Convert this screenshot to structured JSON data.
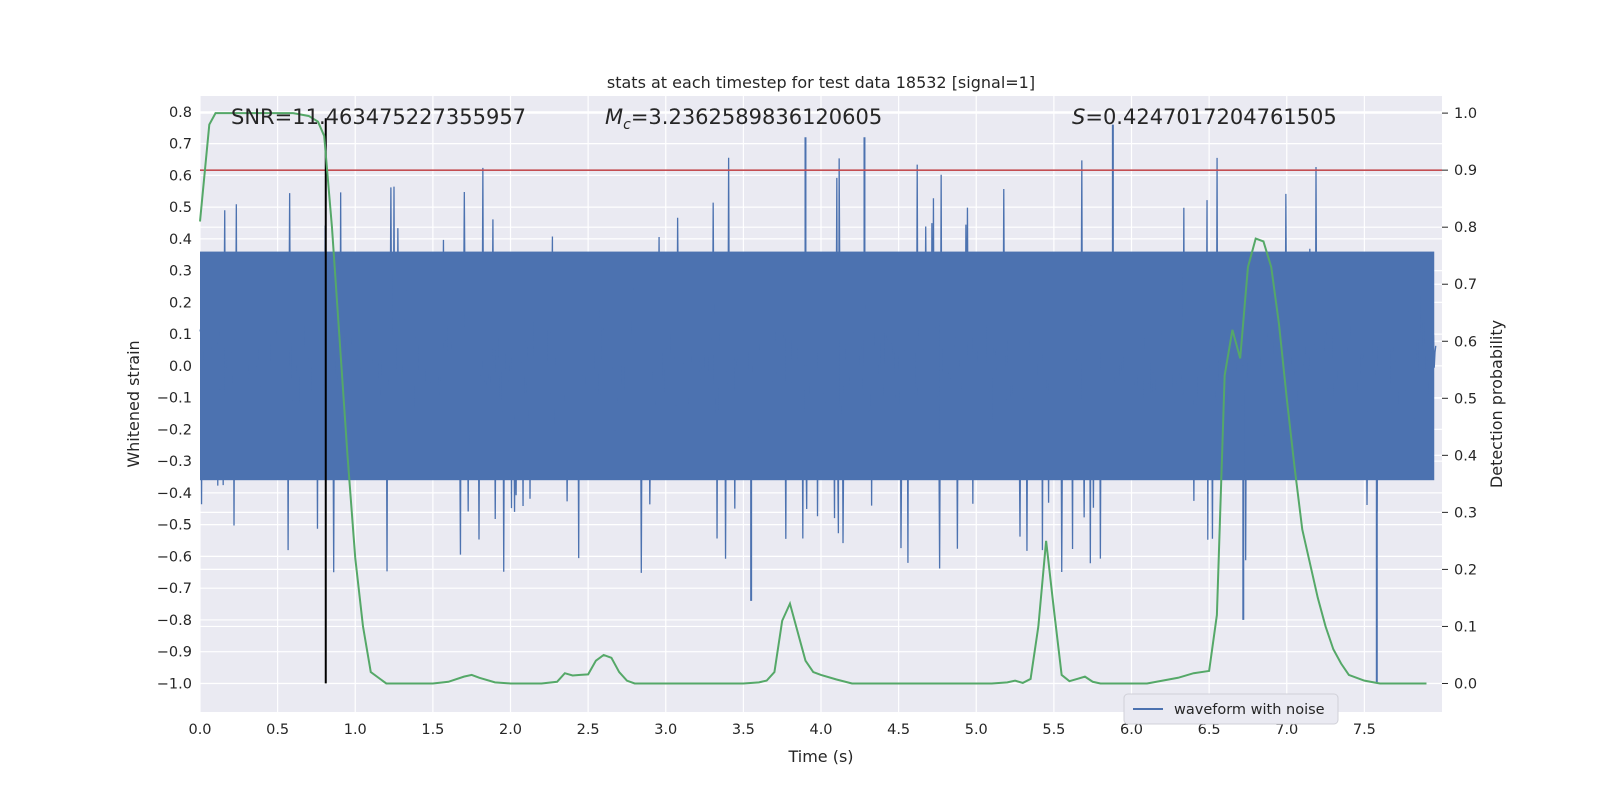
{
  "chart_data": {
    "type": "line",
    "title": "stats at each timestep for test data 18532 [signal=1]",
    "xlabel": "Time (s)",
    "ylabel_left": "Whitened strain",
    "ylabel_right": "Detection probability",
    "xlim": [
      0.0,
      8.0
    ],
    "ylim_left": [
      -1.09,
      0.85
    ],
    "ylim_right": [
      -0.05,
      1.03
    ],
    "xticks": [
      0.0,
      0.5,
      1.0,
      1.5,
      2.0,
      2.5,
      3.0,
      3.5,
      4.0,
      4.5,
      5.0,
      5.5,
      6.0,
      6.5,
      7.0,
      7.5
    ],
    "xtick_labels": [
      "0.0",
      "0.5",
      "1.0",
      "1.5",
      "2.0",
      "2.5",
      "3.0",
      "3.5",
      "4.0",
      "4.5",
      "5.0",
      "5.5",
      "6.0",
      "6.5",
      "7.0",
      "7.5"
    ],
    "yticks_left": [
      0.8,
      0.7,
      0.6,
      0.5,
      0.4,
      0.3,
      0.2,
      0.1,
      0.0,
      -0.1,
      -0.2,
      -0.3,
      -0.4,
      -0.5,
      -0.6,
      -0.7,
      -0.8,
      -0.9,
      -1.0
    ],
    "ytick_labels_left": [
      "0.8",
      "0.7",
      "0.6",
      "0.5",
      "0.4",
      "0.3",
      "0.2",
      "0.1",
      "0.0",
      "-0.1",
      "-0.2",
      "-0.3",
      "-0.4",
      "-0.5",
      "-0.6",
      "-0.7",
      "-0.8",
      "-0.9",
      "-1.0"
    ],
    "yticks_right": [
      1.0,
      0.9,
      0.8,
      0.7,
      0.6,
      0.5,
      0.4,
      0.3,
      0.2,
      0.1,
      0.0
    ],
    "ytick_labels_right": [
      "1.0",
      "0.9",
      "0.8",
      "0.7",
      "0.6",
      "0.5",
      "0.4",
      "0.3",
      "0.2",
      "0.1",
      "0.0"
    ],
    "annotations": {
      "snr": "SNR=11.463475227355957",
      "mc_symbol": "M",
      "mc_subscript": "c",
      "mc_value": "=3.2362589836120605",
      "s_symbol": "S",
      "s_value": "=0.4247017204761505"
    },
    "threshold_right_axis": 0.9,
    "vertical_marker_time": 0.81,
    "vertical_marker_ylim": [
      -1.0,
      0.78
    ],
    "waveform": {
      "name": "waveform with noise",
      "color": "#4c72b0",
      "n_samples": 1600,
      "seed": 18532,
      "envelope": [
        -0.36,
        0.36
      ],
      "min_spike": -1.0,
      "max_spike": 0.76
    },
    "probability": {
      "color": "#55a868",
      "t": [
        0.0,
        0.06,
        0.1,
        0.2,
        0.3,
        0.4,
        0.5,
        0.6,
        0.7,
        0.76,
        0.8,
        0.85,
        0.9,
        0.95,
        1.0,
        1.05,
        1.1,
        1.2,
        1.3,
        1.4,
        1.5,
        1.6,
        1.7,
        1.75,
        1.8,
        1.9,
        2.0,
        2.1,
        2.2,
        2.3,
        2.35,
        2.4,
        2.45,
        2.5,
        2.55,
        2.6,
        2.65,
        2.7,
        2.75,
        2.8,
        2.9,
        3.0,
        3.1,
        3.2,
        3.3,
        3.4,
        3.5,
        3.6,
        3.65,
        3.7,
        3.75,
        3.8,
        3.85,
        3.9,
        3.95,
        4.0,
        4.1,
        4.2,
        4.3,
        4.4,
        4.5,
        4.6,
        4.7,
        4.8,
        4.9,
        5.0,
        5.1,
        5.2,
        5.25,
        5.3,
        5.35,
        5.4,
        5.45,
        5.5,
        5.55,
        5.6,
        5.65,
        5.7,
        5.75,
        5.8,
        5.9,
        6.0,
        6.1,
        6.2,
        6.3,
        6.4,
        6.5,
        6.55,
        6.6,
        6.65,
        6.7,
        6.75,
        6.8,
        6.85,
        6.9,
        6.95,
        7.0,
        7.05,
        7.1,
        7.15,
        7.2,
        7.25,
        7.3,
        7.35,
        7.4,
        7.5,
        7.6,
        7.7,
        7.8,
        7.9
      ],
      "p": [
        0.81,
        0.98,
        1.0,
        1.0,
        1.0,
        1.0,
        1.0,
        1.0,
        0.995,
        0.985,
        0.96,
        0.8,
        0.6,
        0.4,
        0.22,
        0.1,
        0.02,
        0.0,
        0.0,
        0.0,
        0.0,
        0.003,
        0.012,
        0.015,
        0.01,
        0.002,
        0.0,
        0.0,
        0.0,
        0.003,
        0.018,
        0.014,
        0.015,
        0.016,
        0.04,
        0.05,
        0.045,
        0.02,
        0.005,
        0.0,
        0.0,
        0.0,
        0.0,
        0.0,
        0.0,
        0.0,
        0.0,
        0.002,
        0.005,
        0.02,
        0.11,
        0.14,
        0.09,
        0.04,
        0.02,
        0.015,
        0.007,
        0.0,
        0.0,
        0.0,
        0.0,
        0.0,
        0.0,
        0.0,
        0.0,
        0.0,
        0.0,
        0.002,
        0.005,
        0.001,
        0.008,
        0.1,
        0.25,
        0.13,
        0.015,
        0.004,
        0.008,
        0.012,
        0.003,
        0.0,
        0.0,
        0.0,
        0.0,
        0.005,
        0.01,
        0.018,
        0.022,
        0.12,
        0.54,
        0.62,
        0.57,
        0.73,
        0.78,
        0.775,
        0.73,
        0.63,
        0.5,
        0.38,
        0.27,
        0.21,
        0.15,
        0.1,
        0.06,
        0.035,
        0.015,
        0.005,
        0.0,
        0.0,
        0.0,
        0.0
      ]
    },
    "legend": {
      "entries": [
        "waveform with noise"
      ],
      "location": "lower-right"
    },
    "colors": {
      "background": "#eaeaf2",
      "grid": "#ffffff",
      "threshold": "#c44e52",
      "marker": "#000000",
      "text": "#262626"
    }
  }
}
